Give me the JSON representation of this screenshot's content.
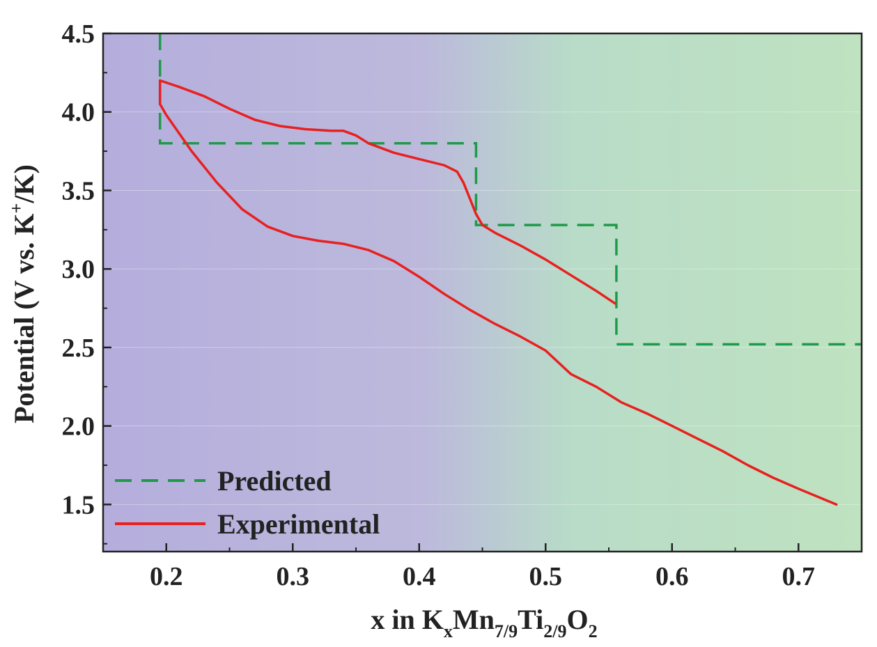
{
  "chart_data": {
    "type": "line",
    "xlabel": {
      "prefix": "x in K",
      "sub1": "x",
      "mid1": "Mn",
      "sub2": "7/9",
      "mid2": "Ti",
      "sub3": "2/9",
      "mid3": "O",
      "sub4": "2"
    },
    "ylabel": {
      "prefix": "Potential (V vs. K",
      "sup": "+",
      "suffix": "/K)"
    },
    "xlim": [
      0.15,
      0.75
    ],
    "ylim": [
      1.2,
      4.5
    ],
    "x_ticks": [
      0.2,
      0.3,
      0.4,
      0.5,
      0.6,
      0.7
    ],
    "x_tick_labels": [
      "0.2",
      "0.3",
      "0.4",
      "0.5",
      "0.6",
      "0.7"
    ],
    "y_ticks": [
      1.5,
      2.0,
      2.5,
      3.0,
      3.5,
      4.0,
      4.5
    ],
    "y_tick_labels": [
      "1.5",
      "2.0",
      "2.5",
      "3.0",
      "3.5",
      "4.0",
      "4.5"
    ],
    "background_gradient": [
      "#b5aedd",
      "#bcb9dc",
      "#b8dcc8",
      "#bfe2c0"
    ],
    "legend_position": "bottom-left",
    "series": [
      {
        "name": "Predicted",
        "style": "dashed",
        "color": "#1f9a4a",
        "x": [
          0.195,
          0.195,
          0.445,
          0.445,
          0.556,
          0.556,
          0.75
        ],
        "y": [
          4.5,
          3.8,
          3.8,
          3.28,
          3.28,
          2.52,
          2.52
        ]
      },
      {
        "name": "Experimental",
        "style": "solid",
        "color": "#e8201f",
        "segments": [
          {
            "x": [
              0.195,
              0.21,
              0.23,
              0.25,
              0.27,
              0.29,
              0.31,
              0.33,
              0.34,
              0.35,
              0.36,
              0.38,
              0.4,
              0.42,
              0.43,
              0.435,
              0.44,
              0.445,
              0.45,
              0.46,
              0.48,
              0.5,
              0.52,
              0.54,
              0.555
            ],
            "y": [
              4.2,
              4.16,
              4.1,
              4.02,
              3.95,
              3.91,
              3.89,
              3.88,
              3.88,
              3.85,
              3.8,
              3.74,
              3.7,
              3.66,
              3.62,
              3.55,
              3.45,
              3.35,
              3.28,
              3.23,
              3.15,
              3.06,
              2.96,
              2.86,
              2.78
            ]
          },
          {
            "x": [
              0.195,
              0.195,
              0.2,
              0.22,
              0.24,
              0.26,
              0.28,
              0.3,
              0.32,
              0.34,
              0.36,
              0.38,
              0.4,
              0.42,
              0.44,
              0.46,
              0.48,
              0.5,
              0.52,
              0.54,
              0.56,
              0.58,
              0.6,
              0.62,
              0.64,
              0.66,
              0.68,
              0.7,
              0.73
            ],
            "y": [
              4.2,
              4.05,
              3.98,
              3.75,
              3.55,
              3.38,
              3.27,
              3.21,
              3.18,
              3.16,
              3.12,
              3.05,
              2.95,
              2.84,
              2.74,
              2.65,
              2.57,
              2.48,
              2.33,
              2.25,
              2.15,
              2.08,
              2.0,
              1.92,
              1.84,
              1.75,
              1.67,
              1.6,
              1.5
            ]
          }
        ]
      }
    ]
  }
}
